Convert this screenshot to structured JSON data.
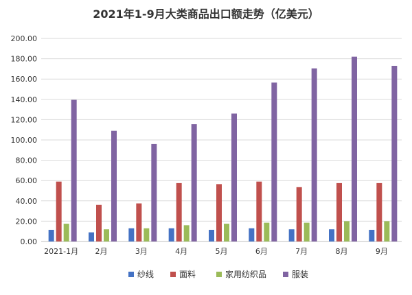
{
  "chart_data": {
    "type": "bar",
    "title": "2021年1-9月大类商品出口额走势（亿美元）",
    "xlabel": "",
    "ylabel": "",
    "categories": [
      "2021-1月",
      "2月",
      "3月",
      "4月",
      "5月",
      "6月",
      "7月",
      "8月",
      "9月"
    ],
    "ylim": [
      0,
      200
    ],
    "yticks": [
      "0.00",
      "20.00",
      "40.00",
      "60.00",
      "80.00",
      "100.00",
      "120.00",
      "140.00",
      "160.00",
      "180.00",
      "200.00"
    ],
    "grid": true,
    "legend_position": "bottom",
    "series": [
      {
        "name": "纱线",
        "color": "#4472c4",
        "values": [
          11.5,
          9,
          13,
          13,
          11.5,
          13,
          12,
          12,
          11.5
        ]
      },
      {
        "name": "面料",
        "color": "#c0504d",
        "values": [
          59,
          36,
          37.5,
          57.5,
          56.5,
          59,
          53.5,
          57.5,
          57.5
        ]
      },
      {
        "name": "家用纺织品",
        "color": "#9bbb59",
        "values": [
          17.5,
          12,
          13,
          16,
          17.5,
          18.5,
          18.5,
          20,
          20
        ]
      },
      {
        "name": "服装",
        "color": "#8064a2",
        "values": [
          139.5,
          109,
          96,
          115.5,
          126,
          156.5,
          170.5,
          182,
          173
        ]
      }
    ]
  }
}
